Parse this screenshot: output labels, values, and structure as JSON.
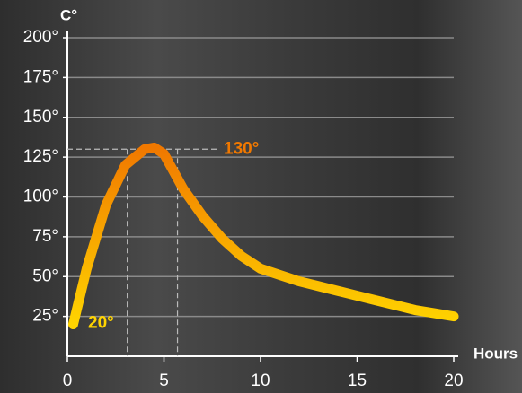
{
  "chart_data": {
    "type": "line",
    "y_label": "C°",
    "x_label": "Hours",
    "x": [
      0.3,
      1,
      2,
      3,
      4,
      4.5,
      5,
      6,
      7,
      8,
      9,
      10,
      11,
      12,
      13,
      14,
      15,
      16,
      17,
      18,
      19,
      20
    ],
    "values": [
      20,
      55,
      95,
      120,
      130,
      131,
      127,
      105,
      88,
      74,
      63,
      55,
      51,
      47,
      44,
      41,
      38,
      35,
      32,
      29,
      27,
      25
    ],
    "color_low": "#ffd400",
    "color_high": "#f07800",
    "xlim": [
      0,
      20
    ],
    "xticks": [
      0,
      5,
      10,
      15,
      20
    ],
    "ylim": [
      0,
      200
    ],
    "yticks": [
      {
        "value": 25,
        "label": "25°"
      },
      {
        "value": 50,
        "label": "50°"
      },
      {
        "value": 75,
        "label": "75°"
      },
      {
        "value": 100,
        "label": "100°"
      },
      {
        "value": 125,
        "label": "125°"
      },
      {
        "value": 150,
        "label": "150°"
      },
      {
        "value": 175,
        "label": "175°"
      },
      {
        "value": 200,
        "label": "200°"
      }
    ],
    "grid": true,
    "reference_x": [
      3.1,
      5.7
    ],
    "reference_y": 130,
    "annotations": [
      {
        "text": "130°",
        "value": 130
      },
      {
        "text": "20°",
        "value": 20
      }
    ]
  }
}
